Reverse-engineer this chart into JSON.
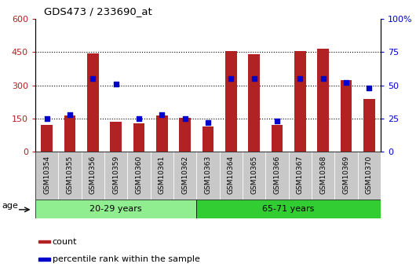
{
  "title": "GDS473 / 233690_at",
  "samples": [
    "GSM10354",
    "GSM10355",
    "GSM10356",
    "GSM10359",
    "GSM10360",
    "GSM10361",
    "GSM10362",
    "GSM10363",
    "GSM10364",
    "GSM10365",
    "GSM10366",
    "GSM10367",
    "GSM10368",
    "GSM10369",
    "GSM10370"
  ],
  "counts": [
    120,
    165,
    445,
    135,
    130,
    165,
    155,
    115,
    455,
    440,
    120,
    455,
    465,
    325,
    240
  ],
  "percentiles": [
    25,
    28,
    55,
    51,
    25,
    28,
    25,
    22,
    55,
    55,
    23,
    55,
    55,
    52,
    48
  ],
  "group1_label": "20-29 years",
  "group2_label": "65-71 years",
  "group1_count": 7,
  "group2_count": 8,
  "age_label": "age",
  "ylim_left": [
    0,
    600
  ],
  "ylim_right": [
    0,
    100
  ],
  "yticks_left": [
    0,
    150,
    300,
    450,
    600
  ],
  "yticks_right": [
    0,
    25,
    50,
    75,
    100
  ],
  "bar_color": "#B22222",
  "dot_color": "#0000CC",
  "group1_bg": "#90EE90",
  "group2_bg": "#32CD32",
  "tick_bg": "#C8C8C8",
  "legend_count": "count",
  "legend_pct": "percentile rank within the sample",
  "grid_color": "black",
  "grid_linestyle": ":",
  "grid_linewidth": 0.8
}
